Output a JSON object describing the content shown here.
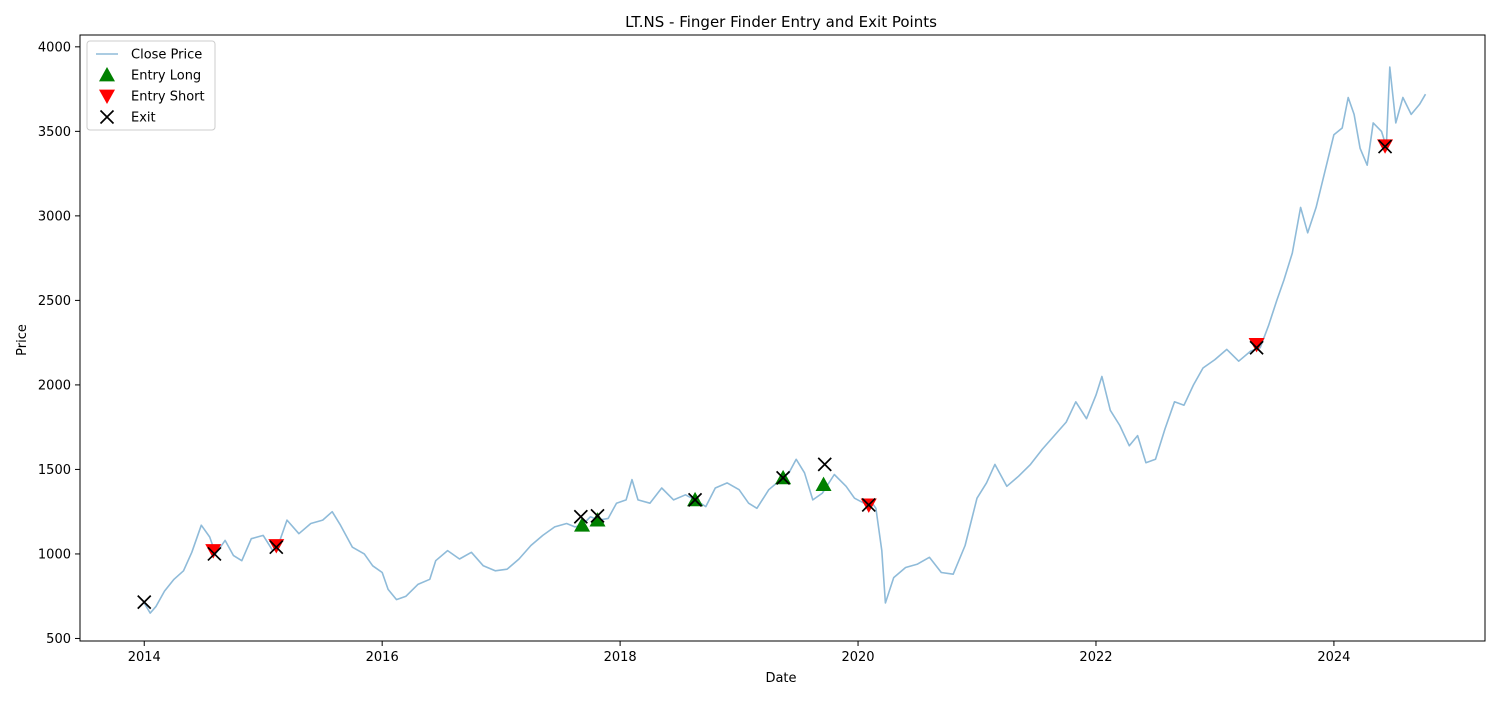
{
  "chart_data": {
    "type": "line",
    "title": "LT.NS - Finger Finder Entry and Exit Points",
    "xlabel": "Date",
    "ylabel": "Price",
    "xlim": [
      2013.46,
      2025.27
    ],
    "ylim": [
      485,
      4070
    ],
    "x_ticks": [
      2014,
      2016,
      2018,
      2020,
      2022,
      2024
    ],
    "x_tick_labels": [
      "2014",
      "2016",
      "2018",
      "2020",
      "2022",
      "2024"
    ],
    "y_ticks": [
      500,
      1000,
      1500,
      2000,
      2500,
      3000,
      3500,
      4000
    ],
    "y_tick_labels": [
      "500",
      "1000",
      "1500",
      "2000",
      "2500",
      "3000",
      "3500",
      "4000"
    ],
    "grid": false,
    "legend_position": "upper left",
    "series": [
      {
        "name": "Close Price",
        "kind": "line",
        "color": "#1f77b4",
        "alpha": 0.5,
        "points": [
          [
            2014.0,
            710
          ],
          [
            2014.05,
            650
          ],
          [
            2014.1,
            690
          ],
          [
            2014.17,
            780
          ],
          [
            2014.25,
            850
          ],
          [
            2014.33,
            900
          ],
          [
            2014.4,
            1010
          ],
          [
            2014.48,
            1170
          ],
          [
            2014.55,
            1100
          ],
          [
            2014.6,
            1000
          ],
          [
            2014.68,
            1080
          ],
          [
            2014.75,
            990
          ],
          [
            2014.82,
            960
          ],
          [
            2014.9,
            1090
          ],
          [
            2015.0,
            1110
          ],
          [
            2015.08,
            1020
          ],
          [
            2015.12,
            1040
          ],
          [
            2015.2,
            1200
          ],
          [
            2015.3,
            1120
          ],
          [
            2015.4,
            1180
          ],
          [
            2015.5,
            1200
          ],
          [
            2015.58,
            1250
          ],
          [
            2015.65,
            1170
          ],
          [
            2015.75,
            1040
          ],
          [
            2015.85,
            1000
          ],
          [
            2015.92,
            930
          ],
          [
            2016.0,
            890
          ],
          [
            2016.05,
            790
          ],
          [
            2016.12,
            730
          ],
          [
            2016.2,
            750
          ],
          [
            2016.3,
            820
          ],
          [
            2016.4,
            850
          ],
          [
            2016.45,
            960
          ],
          [
            2016.55,
            1020
          ],
          [
            2016.65,
            970
          ],
          [
            2016.75,
            1010
          ],
          [
            2016.85,
            930
          ],
          [
            2016.95,
            900
          ],
          [
            2017.05,
            910
          ],
          [
            2017.15,
            970
          ],
          [
            2017.25,
            1050
          ],
          [
            2017.35,
            1110
          ],
          [
            2017.45,
            1160
          ],
          [
            2017.55,
            1180
          ],
          [
            2017.62,
            1160
          ],
          [
            2017.68,
            1170
          ],
          [
            2017.75,
            1220
          ],
          [
            2017.82,
            1200
          ],
          [
            2017.9,
            1210
          ],
          [
            2017.97,
            1300
          ],
          [
            2018.05,
            1320
          ],
          [
            2018.1,
            1440
          ],
          [
            2018.15,
            1320
          ],
          [
            2018.25,
            1300
          ],
          [
            2018.35,
            1390
          ],
          [
            2018.45,
            1320
          ],
          [
            2018.55,
            1350
          ],
          [
            2018.63,
            1320
          ],
          [
            2018.72,
            1280
          ],
          [
            2018.8,
            1390
          ],
          [
            2018.9,
            1420
          ],
          [
            2019.0,
            1380
          ],
          [
            2019.08,
            1300
          ],
          [
            2019.15,
            1270
          ],
          [
            2019.25,
            1380
          ],
          [
            2019.35,
            1440
          ],
          [
            2019.42,
            1480
          ],
          [
            2019.48,
            1560
          ],
          [
            2019.55,
            1480
          ],
          [
            2019.62,
            1320
          ],
          [
            2019.7,
            1360
          ],
          [
            2019.8,
            1470
          ],
          [
            2019.9,
            1400
          ],
          [
            2019.97,
            1330
          ],
          [
            2020.05,
            1300
          ],
          [
            2020.1,
            1320
          ],
          [
            2020.15,
            1270
          ],
          [
            2020.2,
            1020
          ],
          [
            2020.23,
            710
          ],
          [
            2020.3,
            860
          ],
          [
            2020.4,
            920
          ],
          [
            2020.5,
            940
          ],
          [
            2020.6,
            980
          ],
          [
            2020.7,
            890
          ],
          [
            2020.8,
            880
          ],
          [
            2020.9,
            1050
          ],
          [
            2021.0,
            1330
          ],
          [
            2021.08,
            1420
          ],
          [
            2021.15,
            1530
          ],
          [
            2021.25,
            1400
          ],
          [
            2021.35,
            1460
          ],
          [
            2021.45,
            1530
          ],
          [
            2021.55,
            1620
          ],
          [
            2021.65,
            1700
          ],
          [
            2021.75,
            1780
          ],
          [
            2021.83,
            1900
          ],
          [
            2021.92,
            1800
          ],
          [
            2022.0,
            1940
          ],
          [
            2022.05,
            2050
          ],
          [
            2022.12,
            1850
          ],
          [
            2022.2,
            1760
          ],
          [
            2022.28,
            1640
          ],
          [
            2022.35,
            1700
          ],
          [
            2022.42,
            1540
          ],
          [
            2022.5,
            1560
          ],
          [
            2022.58,
            1740
          ],
          [
            2022.66,
            1900
          ],
          [
            2022.74,
            1880
          ],
          [
            2022.82,
            2000
          ],
          [
            2022.9,
            2100
          ],
          [
            2023.0,
            2150
          ],
          [
            2023.1,
            2210
          ],
          [
            2023.2,
            2140
          ],
          [
            2023.3,
            2200
          ],
          [
            2023.38,
            2220
          ],
          [
            2023.45,
            2350
          ],
          [
            2023.52,
            2500
          ],
          [
            2023.58,
            2620
          ],
          [
            2023.65,
            2780
          ],
          [
            2023.72,
            3050
          ],
          [
            2023.78,
            2900
          ],
          [
            2023.85,
            3050
          ],
          [
            2023.92,
            3250
          ],
          [
            2024.0,
            3480
          ],
          [
            2024.07,
            3520
          ],
          [
            2024.12,
            3700
          ],
          [
            2024.17,
            3600
          ],
          [
            2024.22,
            3400
          ],
          [
            2024.28,
            3300
          ],
          [
            2024.33,
            3550
          ],
          [
            2024.4,
            3500
          ],
          [
            2024.44,
            3410
          ],
          [
            2024.47,
            3880
          ],
          [
            2024.52,
            3550
          ],
          [
            2024.58,
            3700
          ],
          [
            2024.65,
            3600
          ],
          [
            2024.72,
            3660
          ],
          [
            2024.77,
            3720
          ]
        ]
      },
      {
        "name": "Entry Long",
        "kind": "scatter",
        "marker": "triangle-up",
        "color": "#008000",
        "points": [
          [
            2017.68,
            1170
          ],
          [
            2017.81,
            1200
          ],
          [
            2018.63,
            1320
          ],
          [
            2019.37,
            1450
          ],
          [
            2019.71,
            1410
          ]
        ]
      },
      {
        "name": "Entry Short",
        "kind": "scatter",
        "marker": "triangle-down",
        "color": "#ff0000",
        "points": [
          [
            2014.58,
            1020
          ],
          [
            2015.11,
            1050
          ],
          [
            2020.09,
            1290
          ],
          [
            2023.35,
            2240
          ],
          [
            2024.43,
            3415
          ]
        ]
      },
      {
        "name": "Exit",
        "kind": "scatter",
        "marker": "x",
        "color": "#000000",
        "points": [
          [
            2014.0,
            715
          ],
          [
            2014.59,
            1000
          ],
          [
            2015.11,
            1040
          ],
          [
            2017.67,
            1220
          ],
          [
            2017.81,
            1225
          ],
          [
            2018.63,
            1320
          ],
          [
            2019.37,
            1450
          ],
          [
            2019.72,
            1530
          ],
          [
            2020.09,
            1290
          ],
          [
            2023.35,
            2220
          ],
          [
            2024.43,
            3410
          ]
        ]
      }
    ]
  }
}
